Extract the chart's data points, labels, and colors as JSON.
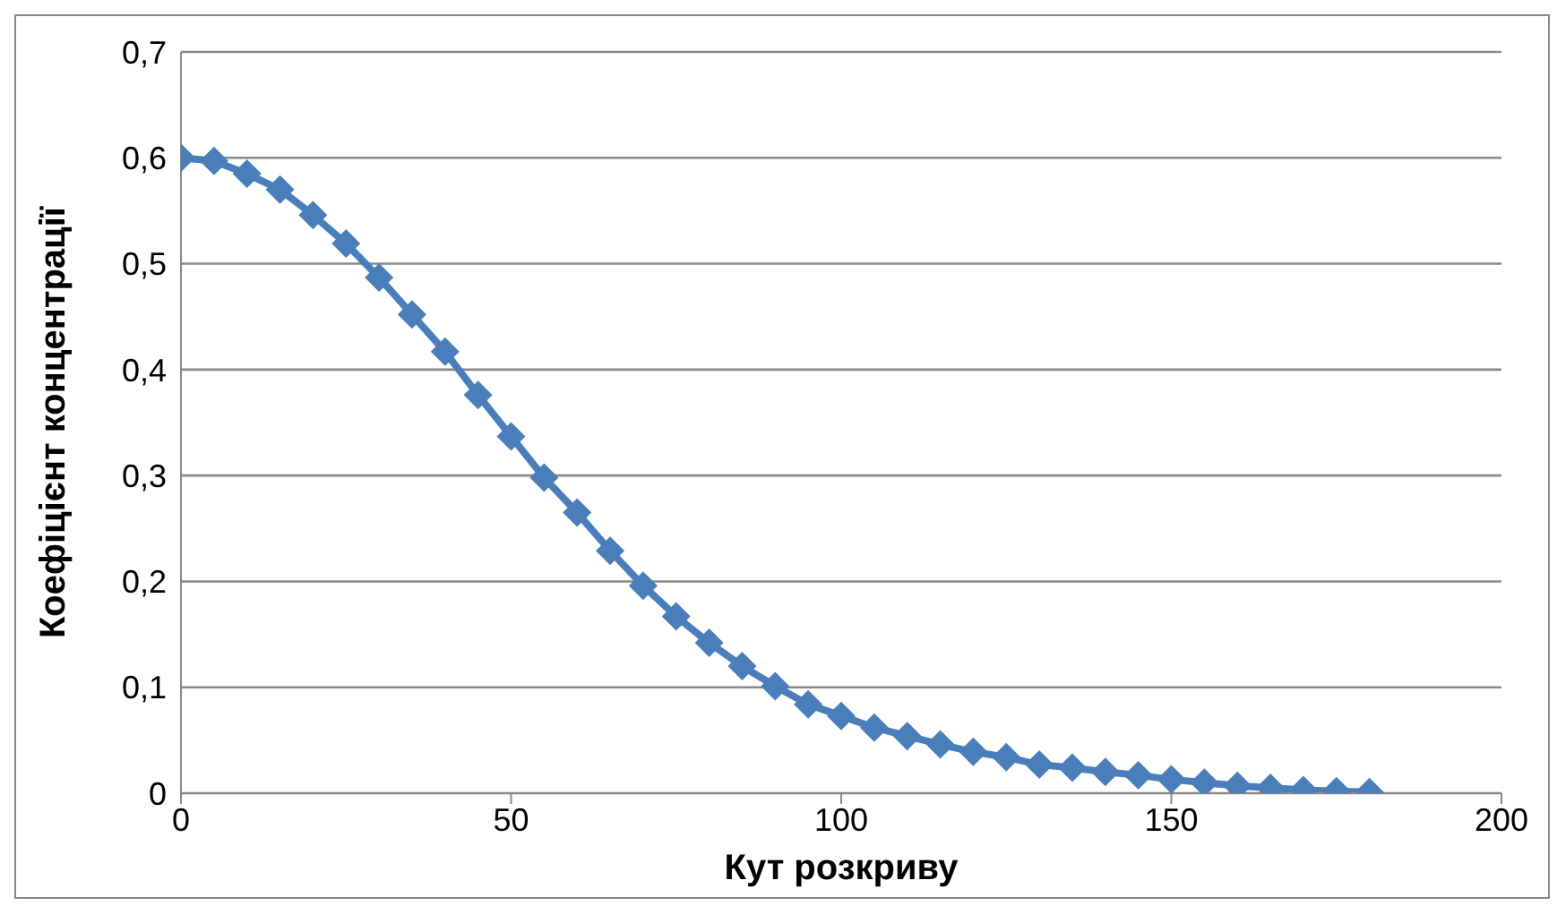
{
  "chart_data": {
    "type": "line",
    "xlabel": "Кут розкриву",
    "ylabel": "Коефіцієнт концентрації",
    "x": [
      0,
      5,
      10,
      15,
      20,
      25,
      30,
      35,
      40,
      45,
      50,
      55,
      60,
      65,
      70,
      75,
      80,
      85,
      90,
      95,
      100,
      105,
      110,
      115,
      120,
      125,
      130,
      135,
      140,
      145,
      150,
      155,
      160,
      165,
      170,
      175,
      180
    ],
    "series": [
      {
        "color": "#4a7ebb",
        "values": [
          0.6,
          0.597,
          0.585,
          0.57,
          0.546,
          0.519,
          0.487,
          0.452,
          0.417,
          0.376,
          0.337,
          0.298,
          0.265,
          0.229,
          0.196,
          0.167,
          0.142,
          0.12,
          0.101,
          0.084,
          0.073,
          0.062,
          0.054,
          0.046,
          0.039,
          0.034,
          0.027,
          0.024,
          0.02,
          0.017,
          0.013,
          0.01,
          0.007,
          0.005,
          0.003,
          0.002,
          0.001
        ]
      }
    ],
    "xlim": [
      0,
      200
    ],
    "xticks": [
      0,
      50,
      100,
      150,
      200
    ],
    "ylim": [
      0,
      0.7
    ],
    "yticks": [
      0,
      {
        "value": 0.1,
        "label": "0,1"
      },
      {
        "value": 0.2,
        "label": "0,2"
      },
      {
        "value": 0.3,
        "label": "0,3"
      },
      {
        "value": 0.4,
        "label": "0,4"
      },
      {
        "value": 0.5,
        "label": "0,5"
      },
      {
        "value": 0.6,
        "label": "0,6"
      },
      {
        "value": 0.7,
        "label": "0,7"
      }
    ],
    "grid": "y",
    "marker": "diamond",
    "line_style": "solid",
    "legend": false
  }
}
